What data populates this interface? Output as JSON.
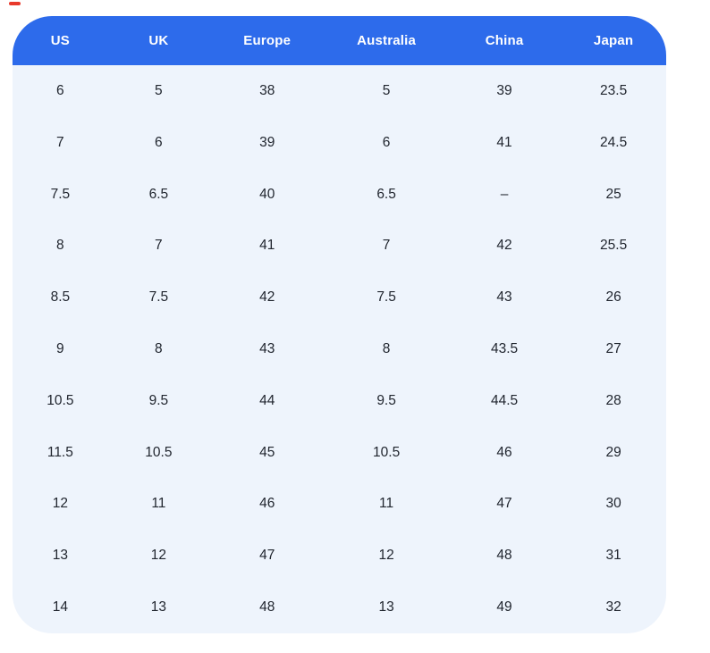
{
  "colors": {
    "page_background": "#ffffff",
    "header_background": "#2d6beb",
    "header_text": "#ffffff",
    "body_background": "#eef4fc",
    "body_text": "#21262f",
    "marker_red": "#e8392b"
  },
  "chart_data": {
    "type": "table",
    "columns": [
      "US",
      "UK",
      "Europe",
      "Australia",
      "China",
      "Japan"
    ],
    "rows": [
      [
        "6",
        "5",
        "38",
        "5",
        "39",
        "23.5"
      ],
      [
        "7",
        "6",
        "39",
        "6",
        "41",
        "24.5"
      ],
      [
        "7.5",
        "6.5",
        "40",
        "6.5",
        "–",
        "25"
      ],
      [
        "8",
        "7",
        "41",
        "7",
        "42",
        "25.5"
      ],
      [
        "8.5",
        "7.5",
        "42",
        "7.5",
        "43",
        "26"
      ],
      [
        "9",
        "8",
        "43",
        "8",
        "43.5",
        "27"
      ],
      [
        "10.5",
        "9.5",
        "44",
        "9.5",
        "44.5",
        "28"
      ],
      [
        "11.5",
        "10.5",
        "45",
        "10.5",
        "46",
        "29"
      ],
      [
        "12",
        "11",
        "46",
        "11",
        "47",
        "30"
      ],
      [
        "13",
        "12",
        "47",
        "12",
        "48",
        "31"
      ],
      [
        "14",
        "13",
        "48",
        "13",
        "49",
        "32"
      ]
    ],
    "layout": {
      "grid": false,
      "header_position": "top",
      "row_count": 11,
      "column_count": 6
    }
  }
}
